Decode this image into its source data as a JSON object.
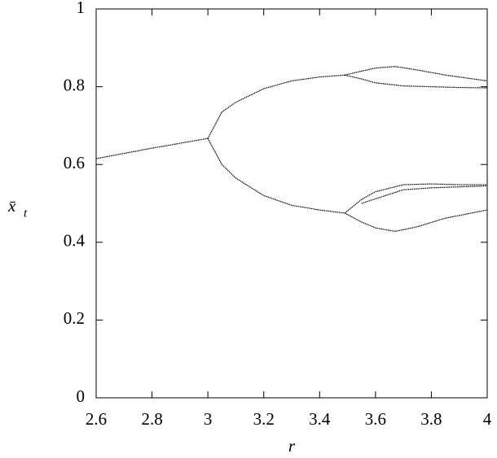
{
  "chart_data": {
    "type": "line",
    "xlabel": "r",
    "ylabel": "x̄",
    "ylabel_subscript": "t",
    "xlim": [
      2.6,
      4
    ],
    "xticks": [
      2.6,
      2.8,
      3,
      3.2,
      3.4,
      3.6,
      3.8,
      4
    ],
    "ylim": [
      0,
      1
    ],
    "yticks": [
      0,
      0.2,
      0.4,
      0.6,
      0.8,
      1
    ],
    "grid": false,
    "series": [
      {
        "color": "#000000",
        "x": [
          2.6,
          2.8,
          3.0
        ],
        "values": [
          0.615,
          0.642,
          0.667
        ]
      },
      {
        "color": "#000000",
        "x": [
          3.0,
          3.05,
          3.1,
          3.2,
          3.3,
          3.4,
          3.49
        ],
        "values": [
          0.667,
          0.735,
          0.76,
          0.795,
          0.815,
          0.825,
          0.83
        ]
      },
      {
        "color": "#000000",
        "x": [
          3.0,
          3.05,
          3.1,
          3.2,
          3.3,
          3.4,
          3.49
        ],
        "values": [
          0.667,
          0.6,
          0.565,
          0.52,
          0.495,
          0.483,
          0.475
        ]
      },
      {
        "color": "#000000",
        "x": [
          3.49,
          3.55,
          3.6,
          3.67,
          3.75,
          3.85,
          4.0
        ],
        "values": [
          0.83,
          0.84,
          0.848,
          0.852,
          0.843,
          0.83,
          0.815
        ]
      },
      {
        "color": "#000000",
        "x": [
          3.49,
          3.55,
          3.6,
          3.7,
          3.8,
          3.9,
          4.0
        ],
        "values": [
          0.83,
          0.82,
          0.81,
          0.802,
          0.8,
          0.798,
          0.797
        ]
      },
      {
        "color": "#000000",
        "x": [
          3.49,
          3.55,
          3.6,
          3.7,
          3.8,
          3.9,
          4.0
        ],
        "values": [
          0.475,
          0.51,
          0.53,
          0.548,
          0.55,
          0.548,
          0.548
        ]
      },
      {
        "color": "#000000",
        "x": [
          3.55,
          3.7,
          3.8,
          4.0
        ],
        "values": [
          0.5,
          0.535,
          0.54,
          0.545
        ]
      },
      {
        "color": "#000000",
        "x": [
          3.49,
          3.55,
          3.6,
          3.67,
          3.75,
          3.85,
          4.0
        ],
        "values": [
          0.475,
          0.452,
          0.437,
          0.428,
          0.44,
          0.462,
          0.483
        ]
      }
    ]
  }
}
